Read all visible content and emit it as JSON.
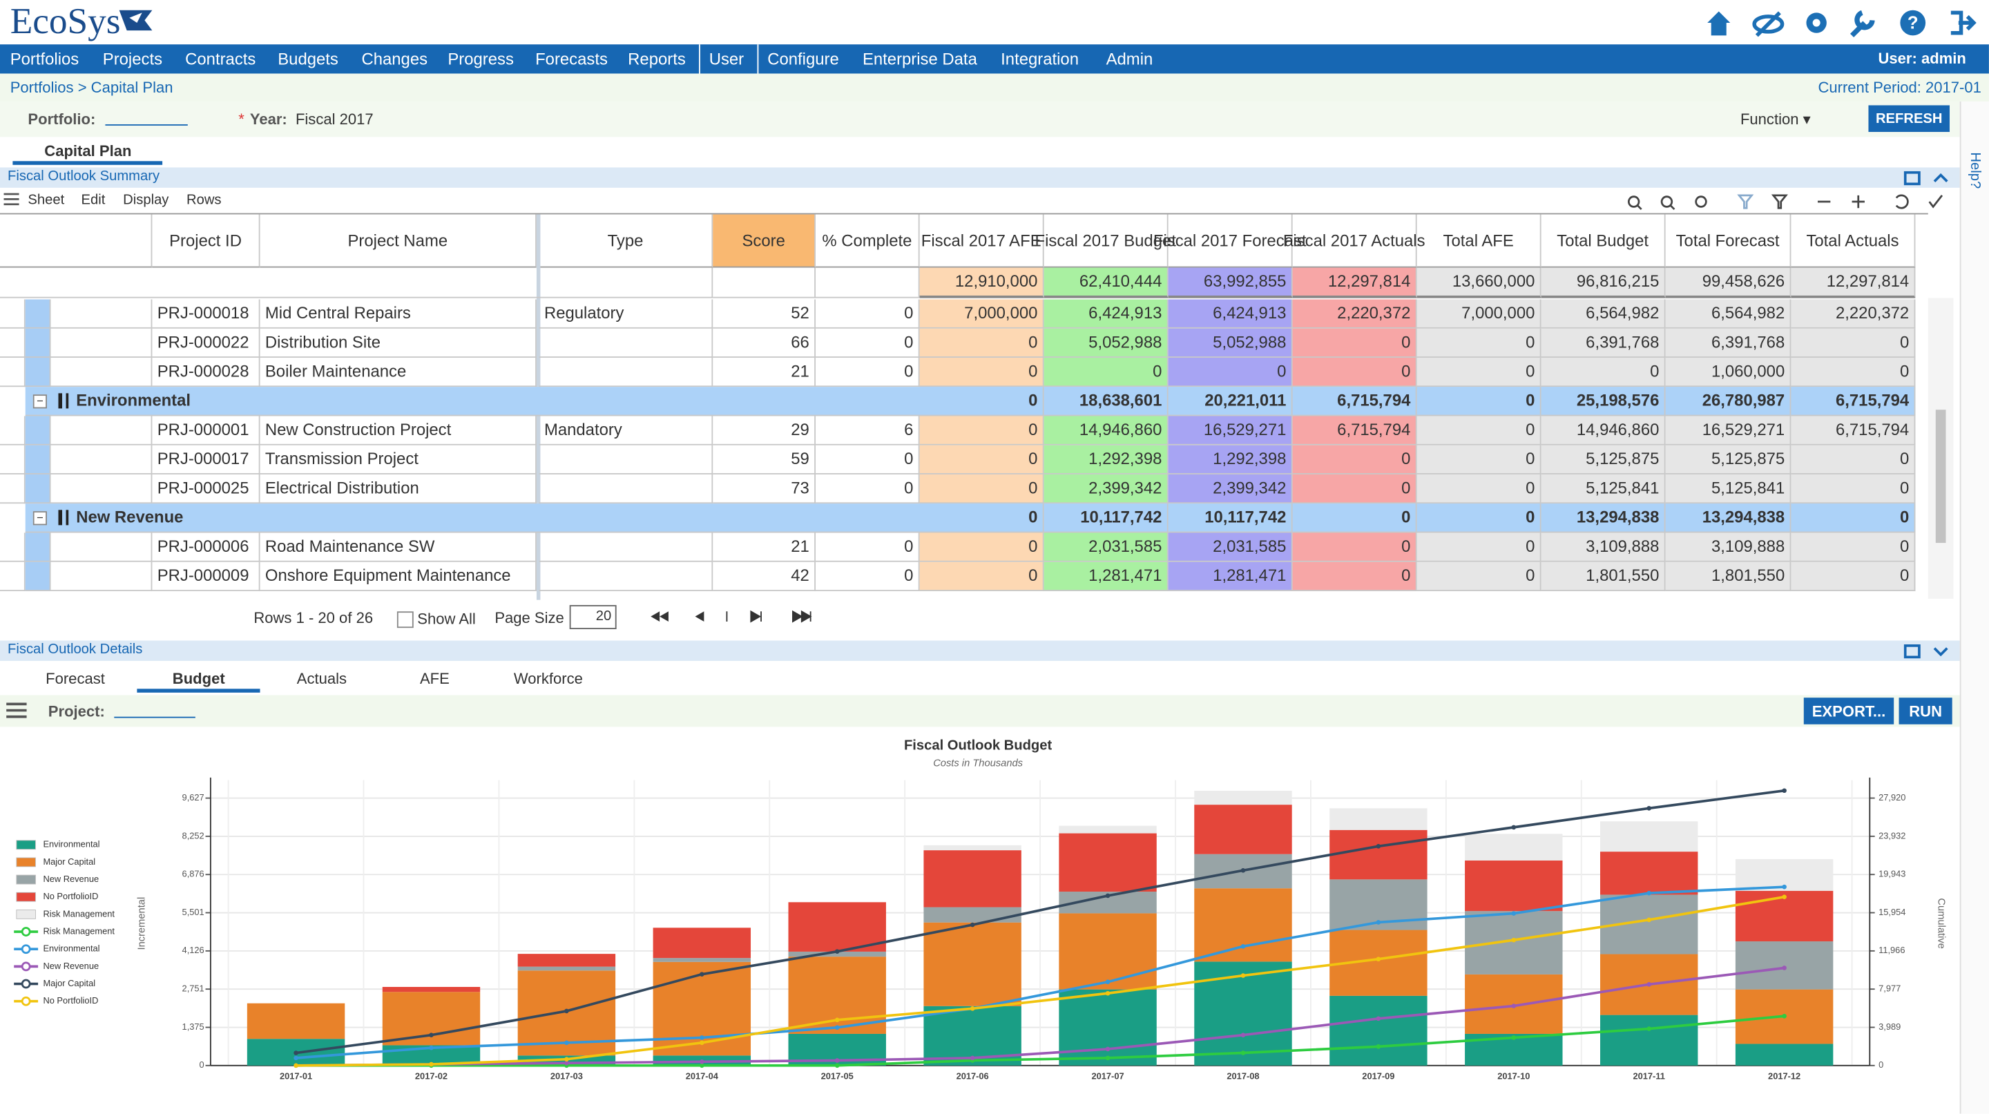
{
  "header": {
    "logo": "EcoSys",
    "nav": [
      "Portfolios",
      "Projects",
      "Contracts",
      "Budgets",
      "Changes",
      "Progress",
      "Forecasts",
      "Reports",
      "User",
      "Configure",
      "Enterprise Data",
      "Integration",
      "Admin"
    ],
    "user": "User: admin"
  },
  "breadcrumb": "Portfolios > Capital Plan",
  "current_period": "Current Period: 2017-01",
  "filters": {
    "portfolio_label": "Portfolio:",
    "required": "*",
    "year_label": "Year:",
    "year_value": "Fiscal 2017",
    "function": "Function",
    "refresh": "REFRESH"
  },
  "tab": "Capital Plan",
  "help": "Help?",
  "summary": {
    "title": "Fiscal Outlook Summary",
    "menu": [
      "Sheet",
      "Edit",
      "Display",
      "Rows"
    ],
    "columns": [
      "Project ID",
      "Project Name",
      "Type",
      "Score",
      "% Complete",
      "Fiscal 2017 AFE",
      "Fiscal 2017 Budget",
      "Fiscal 2017 Forecast",
      "Fiscal 2017 Actuals",
      "Total AFE",
      "Total Budget",
      "Total Forecast",
      "Total Actuals"
    ],
    "totals": [
      "12,910,000",
      "62,410,444",
      "63,992,855",
      "12,297,814",
      "13,660,000",
      "96,816,215",
      "99,458,626",
      "12,297,814"
    ],
    "rows": [
      {
        "id": "PRJ-000018",
        "name": "Mid Central Repairs",
        "type": "Regulatory",
        "score": 52,
        "complete": 0,
        "values": [
          "7,000,000",
          "6,424,913",
          "6,424,913",
          "2,220,372",
          "7,000,000",
          "6,564,982",
          "6,564,982",
          "2,220,372"
        ]
      },
      {
        "id": "PRJ-000022",
        "name": "Distribution Site",
        "score": 66,
        "complete": 0,
        "values": [
          "0",
          "5,052,988",
          "5,052,988",
          "0",
          "0",
          "6,391,768",
          "6,391,768",
          "0"
        ]
      },
      {
        "id": "PRJ-000028",
        "name": "Boiler Maintenance",
        "score": 21,
        "complete": 0,
        "values": [
          "0",
          "0",
          "0",
          "0",
          "0",
          "0",
          "1,060,000",
          "0"
        ]
      },
      {
        "group": "Environmental",
        "values": [
          "0",
          "18,638,601",
          "20,221,011",
          "6,715,794",
          "0",
          "25,198,576",
          "26,780,987",
          "6,715,794"
        ]
      },
      {
        "id": "PRJ-000001",
        "name": "New Construction Project",
        "type": "Mandatory",
        "score": 29,
        "complete": 6,
        "values": [
          "0",
          "14,946,860",
          "16,529,271",
          "6,715,794",
          "0",
          "14,946,860",
          "16,529,271",
          "6,715,794"
        ]
      },
      {
        "id": "PRJ-000017",
        "name": "Transmission Project",
        "score": 59,
        "complete": 0,
        "values": [
          "0",
          "1,292,398",
          "1,292,398",
          "0",
          "0",
          "5,125,875",
          "5,125,875",
          "0"
        ]
      },
      {
        "id": "PRJ-000025",
        "name": "Electrical Distribution",
        "score": 73,
        "complete": 0,
        "values": [
          "0",
          "2,399,342",
          "2,399,342",
          "0",
          "0",
          "5,125,841",
          "5,125,841",
          "0"
        ]
      },
      {
        "group": "New Revenue",
        "values": [
          "0",
          "10,117,742",
          "10,117,742",
          "0",
          "0",
          "13,294,838",
          "13,294,838",
          "0"
        ]
      },
      {
        "id": "PRJ-000006",
        "name": "Road Maintenance SW",
        "score": 21,
        "complete": 0,
        "values": [
          "0",
          "2,031,585",
          "2,031,585",
          "0",
          "0",
          "3,109,888",
          "3,109,888",
          "0"
        ]
      },
      {
        "id": "PRJ-000009",
        "name": "Onshore Equipment Maintenance",
        "score": 42,
        "complete": 0,
        "values": [
          "0",
          "1,281,471",
          "1,281,471",
          "0",
          "0",
          "1,801,550",
          "1,801,550",
          "0"
        ]
      }
    ],
    "pager": {
      "rows": "Rows 1 - 20 of 26",
      "show_all": "Show All",
      "page_size_label": "Page Size",
      "page_size": "20"
    }
  },
  "details": {
    "title": "Fiscal Outlook Details",
    "tabs": [
      "Forecast",
      "Budget",
      "Actuals",
      "AFE",
      "Workforce"
    ],
    "project_label": "Project:",
    "export": "EXPORT...",
    "run": "RUN"
  },
  "chart_data": {
    "type": "bar",
    "stacked": true,
    "title": "Fiscal Outlook Budget",
    "subtitle": "Costs in Thousands",
    "y_label": "Incremental",
    "y2_label": "Cumulative",
    "grid": true,
    "legend": "left",
    "categories": [
      "2017-01",
      "2017-02",
      "2017-03",
      "2017-04",
      "2017-05",
      "2017-06",
      "2017-07",
      "2017-08",
      "2017-09",
      "2017-10",
      "2017-11",
      "2017-12"
    ],
    "ylim": [
      0,
      10000
    ],
    "yticks": [
      0,
      {
        "value": 1375,
        "label": "1,375"
      },
      {
        "value": 2751,
        "label": "2,751"
      },
      {
        "value": 4126,
        "label": "4,126"
      },
      {
        "value": 5501,
        "label": "5,501"
      },
      {
        "value": 6876,
        "label": "6,876"
      },
      {
        "value": 8252,
        "label": "8,252"
      },
      {
        "value": 9627,
        "label": "9,627"
      }
    ],
    "y2lim": [
      0,
      29000
    ],
    "y2ticks": [
      0,
      {
        "value": 3989,
        "label": "3,989"
      },
      {
        "value": 7977,
        "label": "7,977"
      },
      {
        "value": 11966,
        "label": "11,966"
      },
      {
        "value": 15954,
        "label": "15,954"
      },
      {
        "value": 19943,
        "label": "19,943"
      },
      {
        "value": 23932,
        "label": "23,932"
      },
      {
        "value": 27920,
        "label": "27,920"
      }
    ],
    "series": [
      {
        "name": "Environmental",
        "type": "bar",
        "color": "#1a9e85",
        "values": [
          960,
          730,
          360,
          360,
          1140,
          2140,
          2740,
          3740,
          2510,
          1140,
          1820,
          780
        ]
      },
      {
        "name": "Major Capital",
        "type": "bar",
        "color": "#e8822a",
        "values": [
          1280,
          1920,
          3060,
          3370,
          2780,
          3010,
          2740,
          2640,
          2370,
          2140,
          2190,
          1960
        ]
      },
      {
        "name": "New Revenue",
        "type": "bar",
        "color": "#98a4a6",
        "values": [
          0,
          0,
          140,
          140,
          180,
          550,
          780,
          1230,
          1820,
          2280,
          2140,
          1730
        ]
      },
      {
        "name": "No PortfolioID",
        "type": "bar",
        "color": "#e4463a",
        "values": [
          0,
          180,
          460,
          1090,
          1780,
          2050,
          2100,
          1780,
          1780,
          1820,
          1550,
          1820
        ]
      },
      {
        "name": "Risk Management",
        "type": "bar",
        "color": "#ebebeb",
        "values": [
          0,
          0,
          0,
          0,
          0,
          180,
          270,
          500,
          780,
          960,
          1090,
          1140
        ]
      },
      {
        "name": "Risk Management",
        "type": "line",
        "axis": "y2",
        "color": "#2ecc40",
        "values": [
          0,
          0,
          0,
          0,
          0,
          530,
          790,
          1320,
          1980,
          2910,
          3840,
          5160
        ]
      },
      {
        "name": "Environmental",
        "type": "line",
        "axis": "y2",
        "color": "#3498db",
        "values": [
          790,
          1850,
          2380,
          2910,
          3970,
          5950,
          8730,
          12440,
          14950,
          15880,
          18000,
          18650
        ]
      },
      {
        "name": "New Revenue",
        "type": "line",
        "axis": "y2",
        "color": "#9b59b6",
        "values": [
          0,
          130,
          260,
          400,
          530,
          790,
          1720,
          3180,
          4900,
          6220,
          8470,
          10190
        ]
      },
      {
        "name": "Major Capital",
        "type": "line",
        "axis": "y2",
        "color": "#34495e",
        "values": [
          1320,
          3180,
          5690,
          9530,
          11910,
          14690,
          17730,
          20370,
          22890,
          24870,
          26860,
          28700
        ]
      },
      {
        "name": "No PortfolioID",
        "type": "line",
        "axis": "y2",
        "color": "#f1c40f",
        "values": [
          0,
          130,
          660,
          2380,
          4760,
          5950,
          7540,
          9390,
          11110,
          13100,
          15210,
          17600
        ]
      }
    ]
  }
}
